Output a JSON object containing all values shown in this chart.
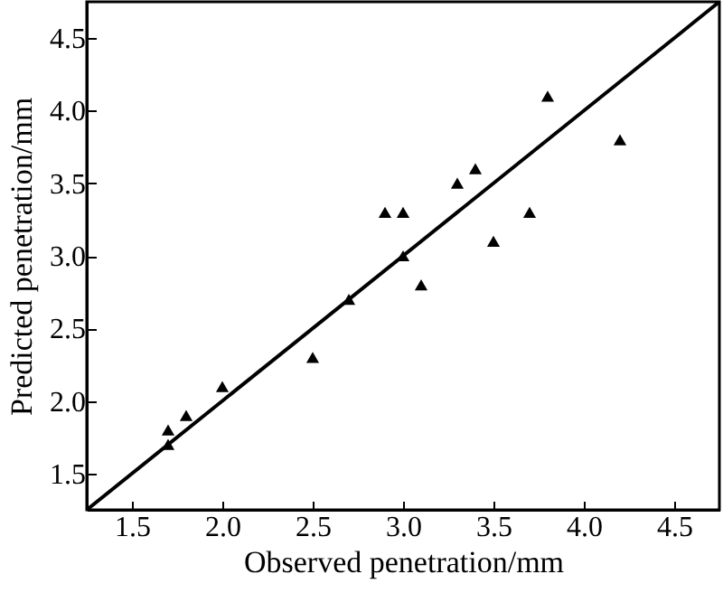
{
  "chart_data": {
    "type": "scatter",
    "xlabel": "Observed penetration/mm",
    "ylabel": "Predicted penetration/mm",
    "xlim": [
      1.25,
      4.75
    ],
    "ylim": [
      1.25,
      4.75
    ],
    "xticks": [
      1.5,
      {
        "value": 2,
        "label": "2.0"
      },
      2.5,
      {
        "value": 3,
        "label": "3.0"
      },
      3.5,
      {
        "value": 4,
        "label": "4.0"
      },
      4.5
    ],
    "yticks": [
      1.5,
      {
        "value": 2,
        "label": "2.0"
      },
      2.5,
      {
        "value": 3,
        "label": "3.0"
      },
      3.5,
      {
        "value": 4,
        "label": "4.0"
      },
      4.5
    ],
    "grid": false,
    "series": [
      {
        "color": "#000000",
        "marker": "triangle",
        "x": [
          1.7,
          1.7,
          1.8,
          2.0,
          2.5,
          2.7,
          2.9,
          3.0,
          3.0,
          3.1,
          3.3,
          3.4,
          3.5,
          3.7,
          3.8,
          4.2
        ],
        "values": [
          1.8,
          1.7,
          1.9,
          2.1,
          2.3,
          2.7,
          3.3,
          3.3,
          3.0,
          2.8,
          3.5,
          3.6,
          3.1,
          3.3,
          4.1,
          3.8
        ]
      },
      {
        "type": "line",
        "marker": "none",
        "color": "#000000",
        "x": [
          1.25,
          4.75
        ],
        "values": [
          1.25,
          4.75
        ]
      }
    ]
  }
}
